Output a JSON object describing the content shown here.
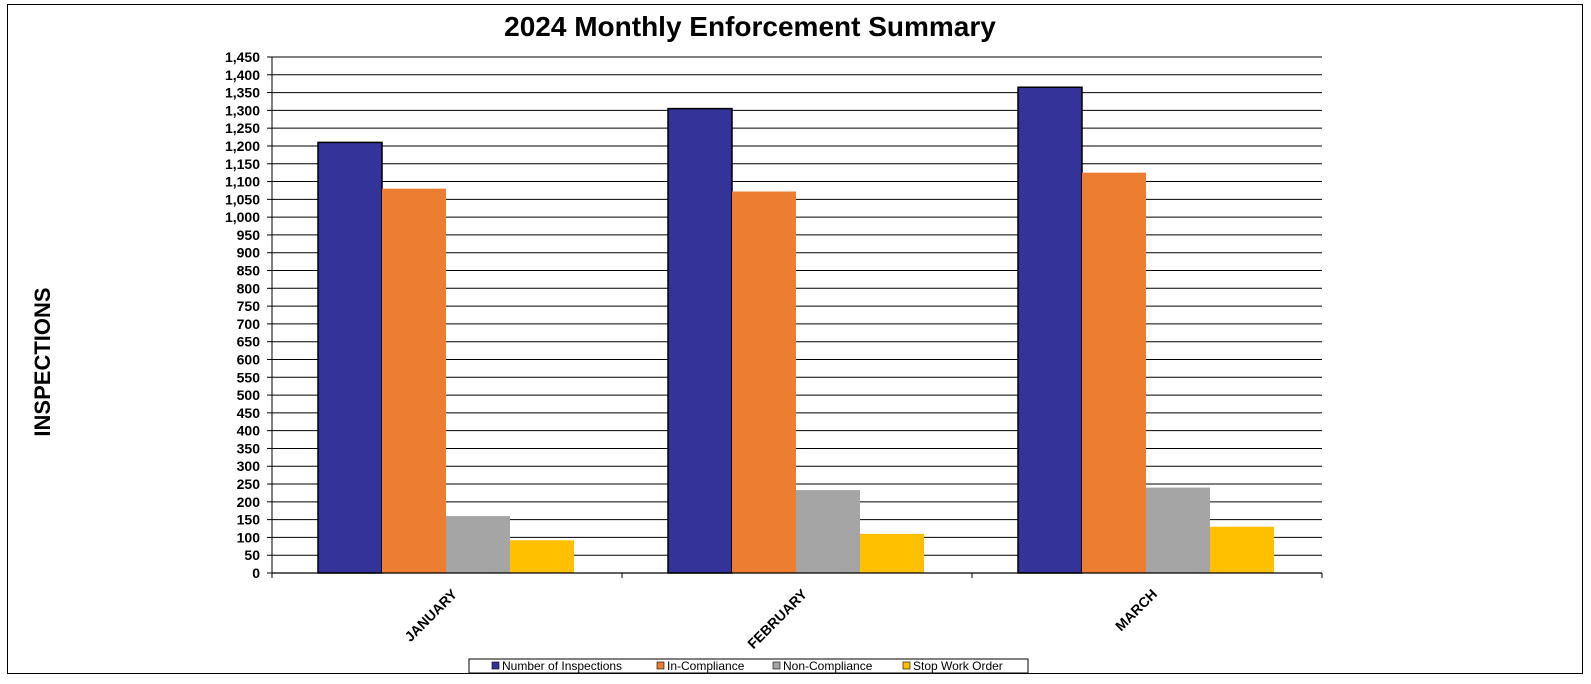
{
  "chart_data": {
    "type": "bar",
    "title": "2024 Monthly Enforcement Summary",
    "ylabel": "INSPECTIONS",
    "xlabel": "",
    "categories": [
      "JANUARY",
      "FEBRUARY",
      "MARCH"
    ],
    "ylim": [
      0,
      1450
    ],
    "ytick_step": 50,
    "grid": true,
    "legend_position": "bottom",
    "series": [
      {
        "name": "Number of Inspections",
        "color": "#333399",
        "values": [
          1210,
          1305,
          1365
        ]
      },
      {
        "name": "In-Compliance",
        "color": "#ED7D31",
        "values": [
          1080,
          1072,
          1125
        ]
      },
      {
        "name": "Non-Compliance",
        "color": "#A5A5A5",
        "values": [
          160,
          233,
          240
        ]
      },
      {
        "name": "Stop Work Order",
        "color": "#FFC000",
        "values": [
          92,
          110,
          130
        ]
      }
    ]
  }
}
